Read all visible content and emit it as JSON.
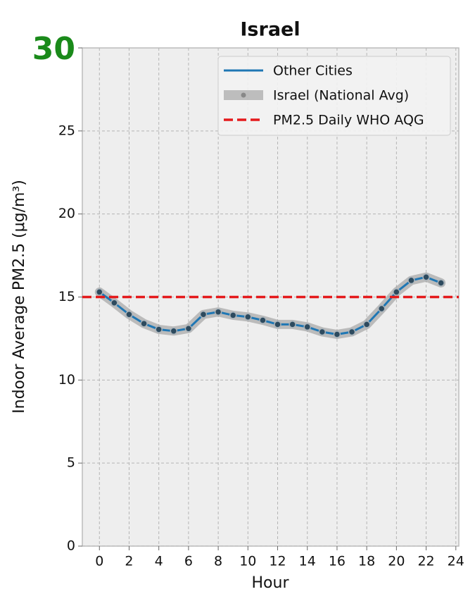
{
  "chart_data": {
    "type": "line",
    "title": "Israel",
    "xlabel": "Hour",
    "ylabel": "Indoor Average PM2.5 (μg/m³)",
    "x": [
      0,
      1,
      2,
      3,
      4,
      5,
      6,
      7,
      8,
      9,
      10,
      11,
      12,
      13,
      14,
      15,
      16,
      17,
      18,
      19,
      20,
      21,
      22,
      23
    ],
    "series": [
      {
        "name": "Other Cities",
        "color": "#1f77b4",
        "values": [
          15.3,
          14.65,
          13.95,
          13.4,
          13.05,
          12.95,
          13.1,
          13.95,
          14.1,
          13.9,
          13.8,
          13.6,
          13.35,
          13.35,
          13.2,
          12.9,
          12.75,
          12.9,
          13.35,
          14.3,
          15.3,
          16.0,
          16.2,
          15.85
        ]
      },
      {
        "name": "Israel (National Avg)",
        "color": "#999999",
        "markers": true,
        "values": [
          15.3,
          14.65,
          13.95,
          13.4,
          13.05,
          12.95,
          13.1,
          13.95,
          14.1,
          13.9,
          13.8,
          13.6,
          13.35,
          13.35,
          13.2,
          12.9,
          12.75,
          12.9,
          13.35,
          14.3,
          15.3,
          16.0,
          16.2,
          15.85
        ]
      }
    ],
    "hlines": [
      {
        "name": "PM2.5 Daily WHO AQG",
        "value": 15,
        "color": "#e41a1c"
      }
    ],
    "xlim": [
      -1.15,
      24.2
    ],
    "xticks": [
      0,
      2,
      4,
      6,
      8,
      10,
      12,
      14,
      16,
      18,
      20,
      22,
      24
    ],
    "ylim": [
      0,
      30
    ],
    "yticks": [
      0,
      5,
      10,
      15,
      20,
      25,
      30
    ],
    "highlight_top_tick_color": "#1a8a1a",
    "grid": true,
    "legend": "upper right"
  }
}
